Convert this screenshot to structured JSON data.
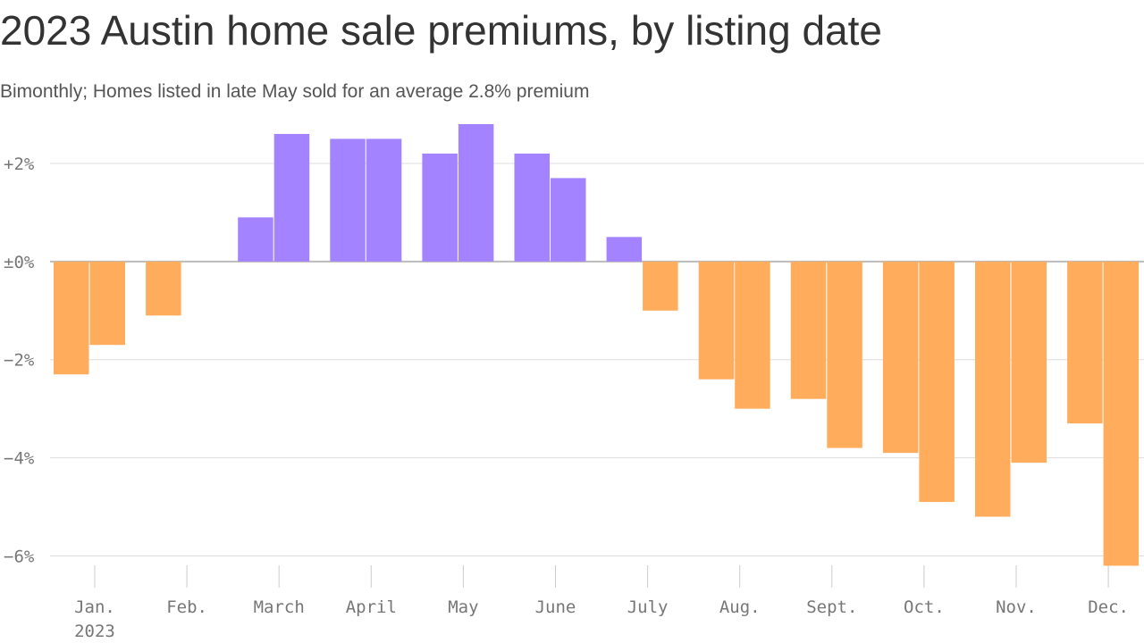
{
  "chart_data": {
    "type": "bar",
    "title": "2023 Austin home sale premiums, by listing date",
    "subtitle": "Bimonthly; Homes listed in late May sold for an average 2.8% premium",
    "categories": [
      "Jan.",
      null,
      "Feb.",
      null,
      "March",
      null,
      "April",
      null,
      "May",
      null,
      "June",
      null,
      "July",
      null,
      "Aug.",
      null,
      "Sept.",
      null,
      "Oct.",
      null,
      "Nov.",
      null,
      "Dec.",
      null
    ],
    "x_sublabel": "2023",
    "values": [
      -2.3,
      -1.7,
      -1.1,
      null,
      0.9,
      2.6,
      2.5,
      2.5,
      2.2,
      2.8,
      2.2,
      1.7,
      0.5,
      -1.0,
      -2.4,
      -3.0,
      -2.8,
      -3.8,
      -3.9,
      -4.9,
      -5.2,
      -4.1,
      -3.3,
      -6.2
    ],
    "colors": {
      "positive": "#a383ff",
      "negative": "#ffad5c"
    },
    "ylim": [
      -6.5,
      3.0
    ],
    "yticks": [
      {
        "value": 2,
        "label": "+2%"
      },
      {
        "value": 0,
        "label": "±0%"
      },
      {
        "value": -2,
        "label": "−2%"
      },
      {
        "value": -4,
        "label": "−4%"
      },
      {
        "value": -6,
        "label": "−6%"
      }
    ],
    "grid": true
  }
}
